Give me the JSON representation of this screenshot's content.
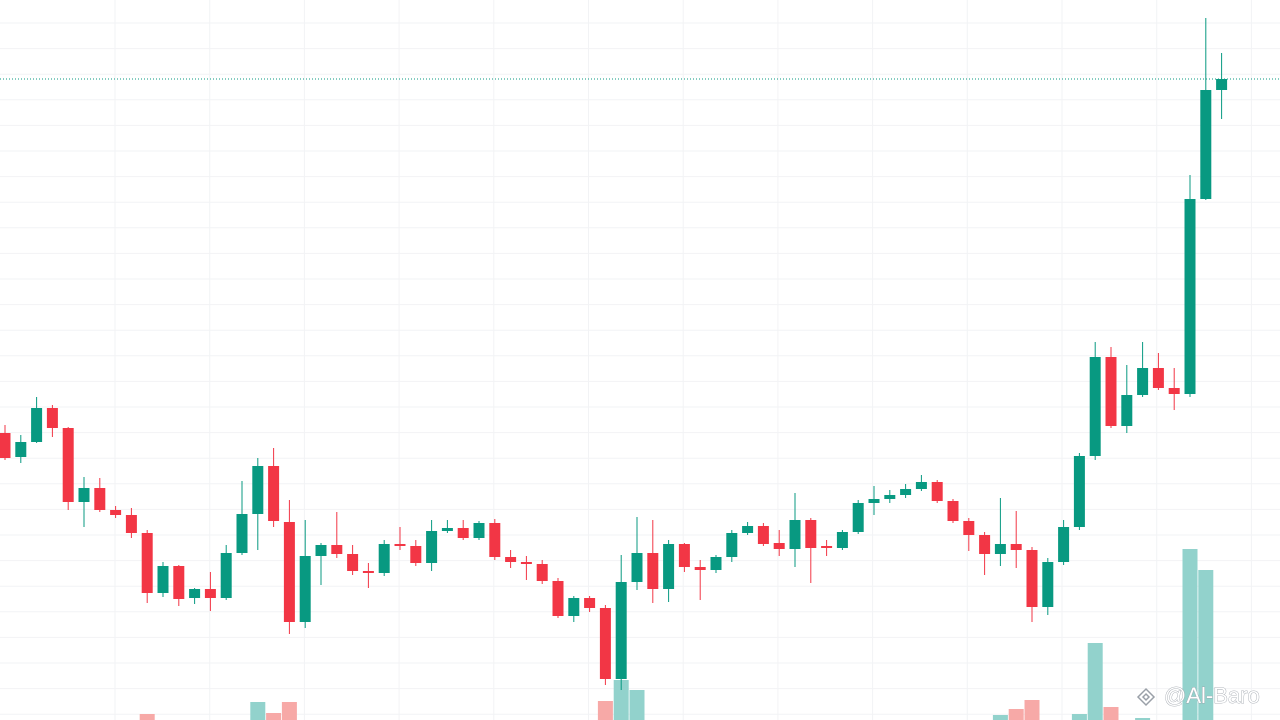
{
  "chart_data": {
    "type": "candlestick",
    "open": [
      287,
      263,
      278,
      312,
      292,
      218,
      232,
      210,
      205,
      187,
      127,
      154,
      122,
      131,
      122,
      167,
      206,
      254,
      198,
      98,
      164,
      175,
      166,
      149,
      147,
      176,
      174,
      157,
      189,
      192,
      182,
      197,
      163,
      158,
      156,
      139,
      104,
      122,
      112,
      41,
      138,
      167,
      131,
      176,
      153,
      150,
      163,
      187,
      194,
      177,
      171,
      200,
      174,
      172,
      188,
      217,
      221,
      225,
      231,
      238,
      219,
      199,
      185,
      166,
      176,
      170,
      113,
      158,
      193,
      264,
      363,
      294,
      325,
      352,
      332,
      326,
      521,
      630
    ],
    "high": [
      295,
      285,
      323,
      315,
      293,
      243,
      242,
      214,
      212,
      190,
      158,
      155,
      132,
      148,
      175,
      239,
      262,
      272,
      220,
      200,
      177,
      208,
      175,
      157,
      180,
      193,
      180,
      200,
      200,
      200,
      199,
      201,
      170,
      164,
      160,
      142,
      124,
      124,
      115,
      165,
      203,
      200,
      180,
      177,
      160,
      165,
      190,
      198,
      197,
      190,
      227,
      202,
      180,
      190,
      220,
      234,
      230,
      236,
      245,
      240,
      221,
      202,
      188,
      222,
      209,
      173,
      162,
      200,
      267,
      378,
      373,
      355,
      378,
      367,
      352,
      545,
      702,
      667
    ],
    "low": [
      260,
      257,
      277,
      283,
      210,
      193,
      208,
      202,
      182,
      117,
      123,
      114,
      116,
      109,
      120,
      165,
      170,
      193,
      86,
      92,
      135,
      162,
      145,
      132,
      144,
      170,
      154,
      149,
      187,
      180,
      180,
      160,
      152,
      140,
      136,
      102,
      98,
      108,
      35,
      30,
      130,
      117,
      118,
      148,
      120,
      147,
      158,
      185,
      174,
      164,
      153,
      137,
      164,
      170,
      186,
      205,
      217,
      222,
      229,
      217,
      197,
      169,
      145,
      154,
      152,
      98,
      105,
      155,
      190,
      260,
      292,
      287,
      323,
      330,
      310,
      323,
      520,
      601
    ],
    "close": [
      262,
      278,
      312,
      292,
      218,
      232,
      210,
      205,
      187,
      127,
      154,
      121,
      131,
      122,
      167,
      206,
      254,
      199,
      98,
      164,
      175,
      166,
      149,
      147,
      176,
      174,
      157,
      189,
      192,
      182,
      197,
      163,
      158,
      156,
      139,
      104,
      122,
      112,
      41,
      138,
      167,
      131,
      176,
      153,
      150,
      163,
      187,
      194,
      176,
      171,
      200,
      172,
      172,
      188,
      217,
      221,
      225,
      231,
      238,
      219,
      199,
      185,
      166,
      176,
      170,
      113,
      158,
      193,
      264,
      363,
      294,
      325,
      352,
      332,
      326,
      521,
      630,
      641
    ],
    "volume": [
      0,
      0,
      0,
      0,
      0,
      0,
      0,
      0,
      0,
      6,
      0,
      0,
      0,
      0,
      0,
      0,
      18,
      7,
      18,
      0,
      0,
      0,
      0,
      0,
      0,
      0,
      0,
      0,
      0,
      0,
      0,
      0,
      0,
      0,
      0,
      0,
      0,
      0,
      19,
      40,
      30,
      0,
      0,
      0,
      0,
      0,
      0,
      0,
      0,
      0,
      0,
      0,
      0,
      0,
      0,
      0,
      0,
      0,
      0,
      0,
      0,
      0,
      0,
      5,
      11,
      20,
      0,
      0,
      6,
      77,
      13,
      0,
      2,
      0,
      0,
      171,
      150,
      0
    ],
    "up_color": "#089981",
    "down_color": "#f23645",
    "volume_up_color": "#92d2cc",
    "volume_down_color": "#f7a9a7",
    "ylim": [
      0,
      720
    ],
    "volume_ylim": [
      0,
      720
    ],
    "grid": true,
    "last_price_line": true,
    "watermark": "@Al-Baro"
  }
}
